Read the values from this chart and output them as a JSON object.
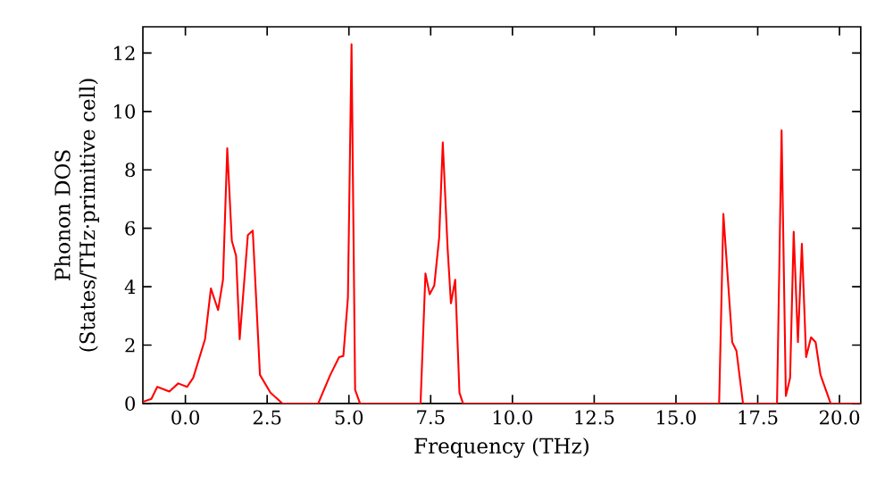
{
  "chart_data": {
    "type": "line",
    "xlabel": "Frequency (THz)",
    "ylabel": "Phonon DOS\n(States/THz·primitive cell)",
    "xlim": [
      -1.3,
      20.65
    ],
    "ylim": [
      0,
      12.9
    ],
    "xticks": [
      {
        "value": 0,
        "label": "0.0"
      },
      {
        "value": 2.5,
        "label": "2.5"
      },
      {
        "value": 5,
        "label": "5.0"
      },
      {
        "value": 7.5,
        "label": "7.5"
      },
      {
        "value": 10,
        "label": "10.0"
      },
      {
        "value": 12.5,
        "label": "12.5"
      },
      {
        "value": 15,
        "label": "15.0"
      },
      {
        "value": 17.5,
        "label": "17.5"
      },
      {
        "value": 20,
        "label": "20.0"
      }
    ],
    "yticks": [
      0,
      2,
      4,
      6,
      8,
      10,
      12
    ],
    "series": [
      {
        "color": "#ff0000",
        "x": [
          -1.3,
          -1.04,
          -0.86,
          -0.49,
          -0.22,
          0.05,
          0.24,
          0.6,
          0.78,
          1.0,
          1.15,
          1.28,
          1.42,
          1.55,
          1.66,
          1.91,
          2.06,
          2.28,
          2.6,
          2.97,
          4.06,
          4.43,
          4.7,
          4.83,
          4.97,
          5.08,
          5.19,
          5.34,
          7.19,
          7.34,
          7.47,
          7.61,
          7.76,
          7.87,
          8.02,
          8.12,
          8.25,
          8.38,
          8.49,
          16.32,
          16.45,
          16.72,
          16.85,
          17.05,
          18.09,
          18.23,
          18.36,
          18.49,
          18.6,
          18.73,
          18.85,
          18.98,
          19.13,
          19.27,
          19.42,
          19.73,
          20.65
        ],
        "values": [
          0.06,
          0.16,
          0.57,
          0.41,
          0.69,
          0.57,
          0.88,
          2.2,
          3.94,
          3.2,
          4.24,
          8.74,
          5.57,
          5.06,
          2.2,
          5.77,
          5.92,
          0.98,
          0.37,
          0.0,
          0.0,
          0.98,
          1.59,
          1.63,
          3.63,
          12.3,
          0.47,
          0.0,
          0.0,
          4.45,
          3.74,
          4.04,
          5.68,
          8.94,
          5.27,
          3.43,
          4.24,
          0.37,
          0.0,
          0.0,
          6.49,
          2.1,
          1.8,
          0.0,
          0.0,
          9.35,
          0.26,
          0.88,
          5.88,
          2.1,
          5.47,
          1.59,
          2.27,
          2.1,
          0.98,
          0.0,
          0.0
        ]
      }
    ]
  }
}
